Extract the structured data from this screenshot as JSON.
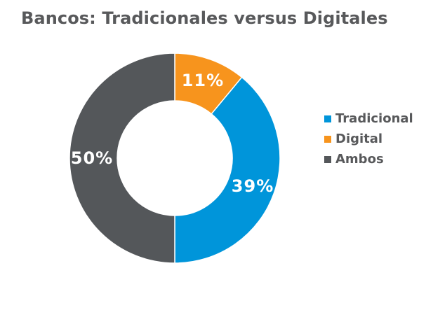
{
  "chart_data": {
    "type": "pie",
    "title": "Bancos: Tradicionales versus Digitales",
    "slices": [
      {
        "name": "Digital",
        "value": 11,
        "label": "11%",
        "color": "#f7941d"
      },
      {
        "name": "Tradicional",
        "value": 39,
        "label": "39%",
        "color": "#0095da"
      },
      {
        "name": "Ambos",
        "value": 50,
        "label": "50%",
        "color": "#54575a"
      }
    ],
    "legend": [
      {
        "name": "Tradicional",
        "color": "#0095da"
      },
      {
        "name": "Digital",
        "color": "#f7941d"
      },
      {
        "name": "Ambos",
        "color": "#54575a"
      }
    ],
    "legend_position": "right"
  }
}
